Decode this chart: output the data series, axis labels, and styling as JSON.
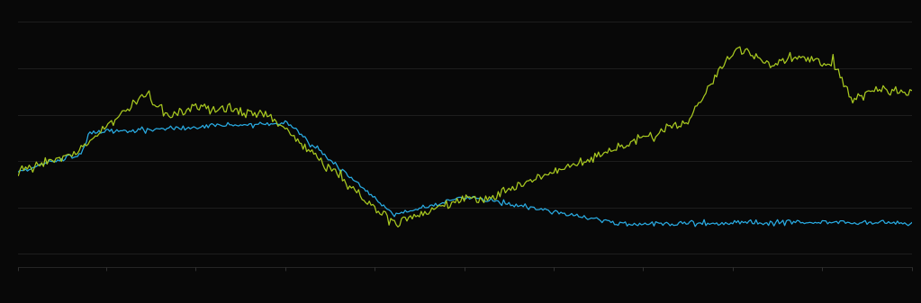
{
  "background_color": "#080808",
  "plot_bg_color": "#080808",
  "grid_color": "#222222",
  "line1_color": "#29abe2",
  "line2_color": "#a8c820",
  "figsize": [
    10.23,
    3.37
  ],
  "dpi": 100,
  "n_points": 500
}
